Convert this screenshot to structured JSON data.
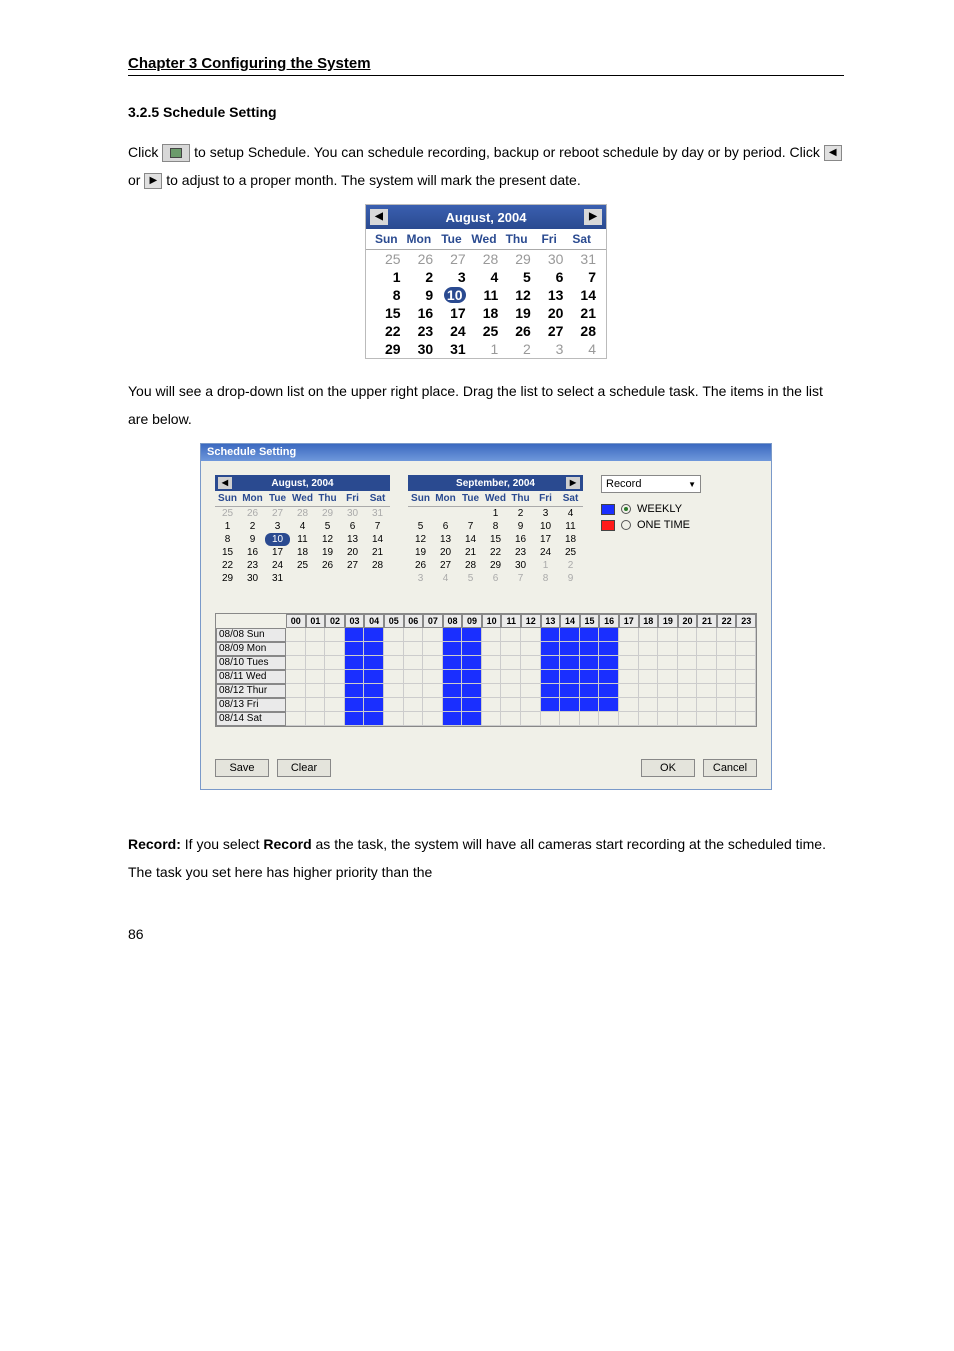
{
  "chapter_header": "Chapter 3    Configuring the System",
  "section_header": "3.2.5   Schedule Setting",
  "para1_a": "Click ",
  "para1_b": " to setup Schedule. You can schedule recording, backup or reboot schedule by day or by period. Click ",
  "para1_c": " or ",
  "para1_d": " to adjust to a proper month. The system will mark the present date.",
  "small_cal": {
    "month": "August, 2004",
    "dow": [
      "Sun",
      "Mon",
      "Tue",
      "Wed",
      "Thu",
      "Fri",
      "Sat"
    ],
    "rows": [
      [
        {
          "v": "25",
          "d": true
        },
        {
          "v": "26",
          "d": true
        },
        {
          "v": "27",
          "d": true
        },
        {
          "v": "28",
          "d": true
        },
        {
          "v": "29",
          "d": true
        },
        {
          "v": "30",
          "d": true
        },
        {
          "v": "31",
          "d": true
        }
      ],
      [
        {
          "v": "1"
        },
        {
          "v": "2"
        },
        {
          "v": "3"
        },
        {
          "v": "4"
        },
        {
          "v": "5"
        },
        {
          "v": "6"
        },
        {
          "v": "7"
        }
      ],
      [
        {
          "v": "8"
        },
        {
          "v": "9"
        },
        {
          "v": "10",
          "t": true
        },
        {
          "v": "11"
        },
        {
          "v": "12"
        },
        {
          "v": "13"
        },
        {
          "v": "14"
        }
      ],
      [
        {
          "v": "15"
        },
        {
          "v": "16"
        },
        {
          "v": "17"
        },
        {
          "v": "18"
        },
        {
          "v": "19"
        },
        {
          "v": "20"
        },
        {
          "v": "21"
        }
      ],
      [
        {
          "v": "22"
        },
        {
          "v": "23"
        },
        {
          "v": "24"
        },
        {
          "v": "25"
        },
        {
          "v": "26"
        },
        {
          "v": "27"
        },
        {
          "v": "28"
        }
      ],
      [
        {
          "v": "29"
        },
        {
          "v": "30"
        },
        {
          "v": "31"
        },
        {
          "v": "1",
          "d": true
        },
        {
          "v": "2",
          "d": true
        },
        {
          "v": "3",
          "d": true
        },
        {
          "v": "4",
          "d": true
        }
      ]
    ]
  },
  "para2": "You will see a drop-down list on the upper right place. Drag the list to select a schedule task. The items in the list are below.",
  "sched": {
    "title": "Schedule Setting",
    "left_month": "August, 2004",
    "right_month": "September, 2004",
    "dow": [
      "Sun",
      "Mon",
      "Tue",
      "Wed",
      "Thu",
      "Fri",
      "Sat"
    ],
    "left_rows": [
      [
        {
          "v": "25",
          "d": true
        },
        {
          "v": "26",
          "d": true
        },
        {
          "v": "27",
          "d": true
        },
        {
          "v": "28",
          "d": true
        },
        {
          "v": "29",
          "d": true
        },
        {
          "v": "30",
          "d": true
        },
        {
          "v": "31",
          "d": true
        }
      ],
      [
        {
          "v": "1"
        },
        {
          "v": "2"
        },
        {
          "v": "3"
        },
        {
          "v": "4"
        },
        {
          "v": "5"
        },
        {
          "v": "6"
        },
        {
          "v": "7"
        }
      ],
      [
        {
          "v": "8"
        },
        {
          "v": "9"
        },
        {
          "v": "10",
          "t": true
        },
        {
          "v": "11"
        },
        {
          "v": "12"
        },
        {
          "v": "13"
        },
        {
          "v": "14"
        }
      ],
      [
        {
          "v": "15"
        },
        {
          "v": "16"
        },
        {
          "v": "17"
        },
        {
          "v": "18"
        },
        {
          "v": "19"
        },
        {
          "v": "20"
        },
        {
          "v": "21"
        }
      ],
      [
        {
          "v": "22"
        },
        {
          "v": "23"
        },
        {
          "v": "24"
        },
        {
          "v": "25"
        },
        {
          "v": "26"
        },
        {
          "v": "27"
        },
        {
          "v": "28"
        }
      ],
      [
        {
          "v": "29"
        },
        {
          "v": "30"
        },
        {
          "v": "31"
        },
        {
          "v": ""
        },
        {
          "v": ""
        },
        {
          "v": ""
        },
        {
          "v": ""
        }
      ]
    ],
    "right_rows": [
      [
        {
          "v": ""
        },
        {
          "v": ""
        },
        {
          "v": ""
        },
        {
          "v": "1"
        },
        {
          "v": "2"
        },
        {
          "v": "3"
        },
        {
          "v": "4"
        }
      ],
      [
        {
          "v": "5"
        },
        {
          "v": "6"
        },
        {
          "v": "7"
        },
        {
          "v": "8"
        },
        {
          "v": "9"
        },
        {
          "v": "10"
        },
        {
          "v": "11"
        }
      ],
      [
        {
          "v": "12"
        },
        {
          "v": "13"
        },
        {
          "v": "14"
        },
        {
          "v": "15"
        },
        {
          "v": "16"
        },
        {
          "v": "17"
        },
        {
          "v": "18"
        }
      ],
      [
        {
          "v": "19"
        },
        {
          "v": "20"
        },
        {
          "v": "21"
        },
        {
          "v": "22"
        },
        {
          "v": "23"
        },
        {
          "v": "24"
        },
        {
          "v": "25"
        }
      ],
      [
        {
          "v": "26"
        },
        {
          "v": "27"
        },
        {
          "v": "28"
        },
        {
          "v": "29"
        },
        {
          "v": "30"
        },
        {
          "v": "1",
          "d": true
        },
        {
          "v": "2",
          "d": true
        }
      ],
      [
        {
          "v": "3",
          "d": true
        },
        {
          "v": "4",
          "d": true
        },
        {
          "v": "5",
          "d": true
        },
        {
          "v": "6",
          "d": true
        },
        {
          "v": "7",
          "d": true
        },
        {
          "v": "8",
          "d": true
        },
        {
          "v": "9",
          "d": true
        }
      ]
    ],
    "select_val": "Record",
    "legend_weekly": "WEEKLY",
    "legend_onetime": "ONE TIME",
    "weekly_color": "#1a2fff",
    "onetime_color": "#ff1a1a",
    "hours": [
      "00",
      "01",
      "02",
      "03",
      "04",
      "05",
      "06",
      "07",
      "08",
      "09",
      "10",
      "11",
      "12",
      "13",
      "14",
      "15",
      "16",
      "17",
      "18",
      "19",
      "20",
      "21",
      "22",
      "23"
    ],
    "days": [
      {
        "label": "08/08 Sun"
      },
      {
        "label": "08/09 Mon"
      },
      {
        "label": "08/10 Tues"
      },
      {
        "label": "08/11 Wed"
      },
      {
        "label": "08/12 Thur"
      },
      {
        "label": "08/13 Fri"
      },
      {
        "label": "08/14 Sat"
      }
    ],
    "filled_hours": [
      3,
      4,
      8,
      9,
      13,
      14,
      15,
      16
    ],
    "filled_last_row_hours": [
      3,
      4,
      8,
      9
    ],
    "save_btn": "Save",
    "clear_btn": "Clear",
    "ok_btn": "OK",
    "cancel_btn": "Cancel"
  },
  "para3_a": "Record:",
  "para3_b": " If you select ",
  "para3_c": "Record",
  "para3_d": " as the task, the system will have all cameras start recording at the scheduled time. The task you set here has higher priority than the",
  "page_num": "86"
}
